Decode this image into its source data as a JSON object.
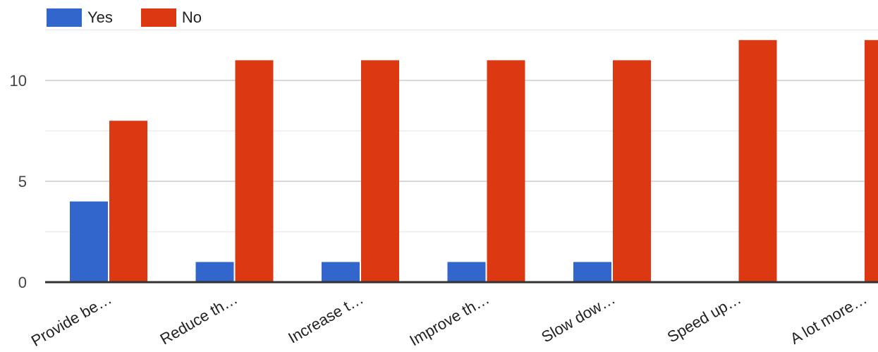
{
  "chart_data": {
    "type": "bar",
    "categories": [
      "Provide be…",
      "Reduce th…",
      "Increase t…",
      "Improve th…",
      "Slow dow…",
      "Speed up…",
      "A lot more…"
    ],
    "series": [
      {
        "name": "Yes",
        "color": "#3366cc",
        "values": [
          4,
          1,
          1,
          1,
          1,
          0,
          0
        ]
      },
      {
        "name": "No",
        "color": "#dc3912",
        "values": [
          8,
          11,
          11,
          11,
          11,
          12,
          12
        ]
      }
    ],
    "title": "",
    "xlabel": "",
    "ylabel": "",
    "ylim": [
      0,
      12.5
    ],
    "yticks": [
      0,
      5,
      10
    ],
    "grid": true,
    "legend_position": "top-left"
  }
}
